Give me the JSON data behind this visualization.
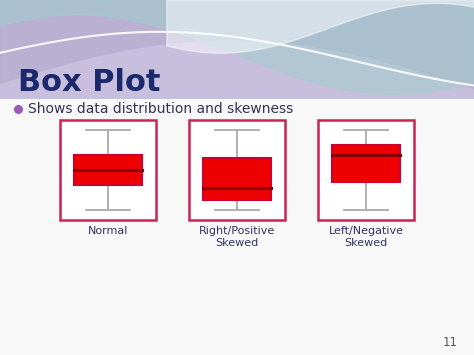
{
  "title": "Box Plot",
  "subtitle": "Shows data distribution and skewness",
  "title_color": "#1a2a6c",
  "subtitle_color": "#333355",
  "bullet_color": "#9b59b6",
  "slide_background": "#f8f8f8",
  "box_fill_color": "#ee0000",
  "box_edge_color": "#cc0033",
  "median_color": "#880000",
  "whisker_color": "#aaaaaa",
  "cap_color": "#aaaaaa",
  "frame_color": "#cc2255",
  "label_color": "#333366",
  "page_number": "11",
  "header_base": "#c8bedd",
  "wave1_color": "#b8aed0",
  "wave2_color": "#a0cece",
  "wave3_color": "#d8eaea",
  "labels": [
    "Normal",
    "Right/Positive\nSkewed",
    "Left/Negative\nSkewed"
  ],
  "plots": [
    {
      "whisker_low": 1.0,
      "q1": 3.5,
      "median": 5.0,
      "q3": 6.5,
      "whisker_high": 9.0
    },
    {
      "whisker_low": 1.0,
      "q1": 2.0,
      "median": 3.2,
      "q3": 6.2,
      "whisker_high": 9.0
    },
    {
      "whisker_low": 1.0,
      "q1": 3.8,
      "median": 6.5,
      "q3": 7.5,
      "whisker_high": 9.0
    }
  ]
}
